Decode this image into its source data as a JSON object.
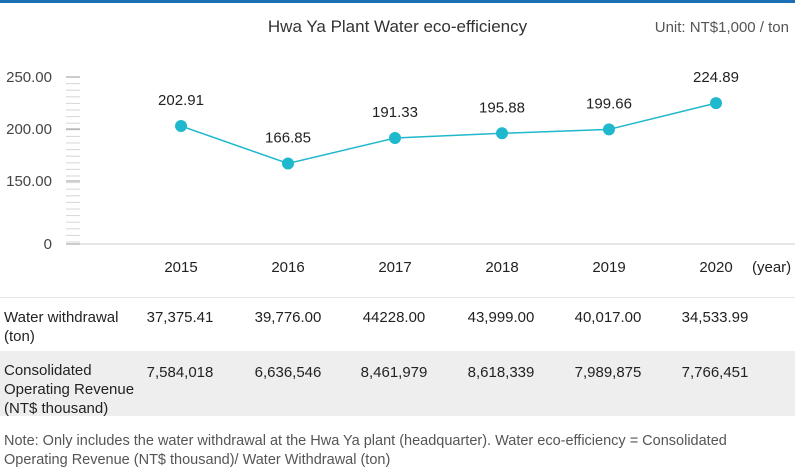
{
  "chart_data": {
    "type": "line",
    "title": "Hwa Ya Plant Water eco-efficiency",
    "unit": "Unit: NT$1,000 / ton",
    "x": [
      "2015",
      "2016",
      "2017",
      "2018",
      "2019",
      "2020"
    ],
    "x_unit": "(year)",
    "values": [
      202.91,
      166.85,
      191.33,
      195.88,
      199.66,
      224.89
    ],
    "data_labels": [
      "202.91",
      "166.85",
      "191.33",
      "195.88",
      "199.66",
      "224.89"
    ],
    "y_ticks": [
      "0",
      "150.00",
      "200.00",
      "250.00"
    ],
    "ylim": [
      0,
      250
    ],
    "grid": false,
    "legend": "none",
    "line_color": "#1fb8cc"
  },
  "table": {
    "rows": [
      {
        "label": "Water withdrawal (ton)",
        "values": [
          "37,375.41",
          "39,776.00",
          "44228.00",
          "43,999.00",
          "40,017.00",
          "34,533.99"
        ]
      },
      {
        "label": "Consolidated Operating Revenue (NT$ thousand)",
        "values": [
          "7,584,018",
          "6,636,546",
          "8,461,979",
          "8,618,339",
          "7,989,875",
          "7,766,451"
        ]
      }
    ]
  },
  "note": "Note: Only includes the water withdrawal at the Hwa Ya plant (headquarter). Water eco-efficiency = Consolidated Operating Revenue (NT$ thousand)/ Water Withdrawal (ton)",
  "colors": {
    "accent": "#1a6fb5",
    "series": "#1fb8cc"
  }
}
